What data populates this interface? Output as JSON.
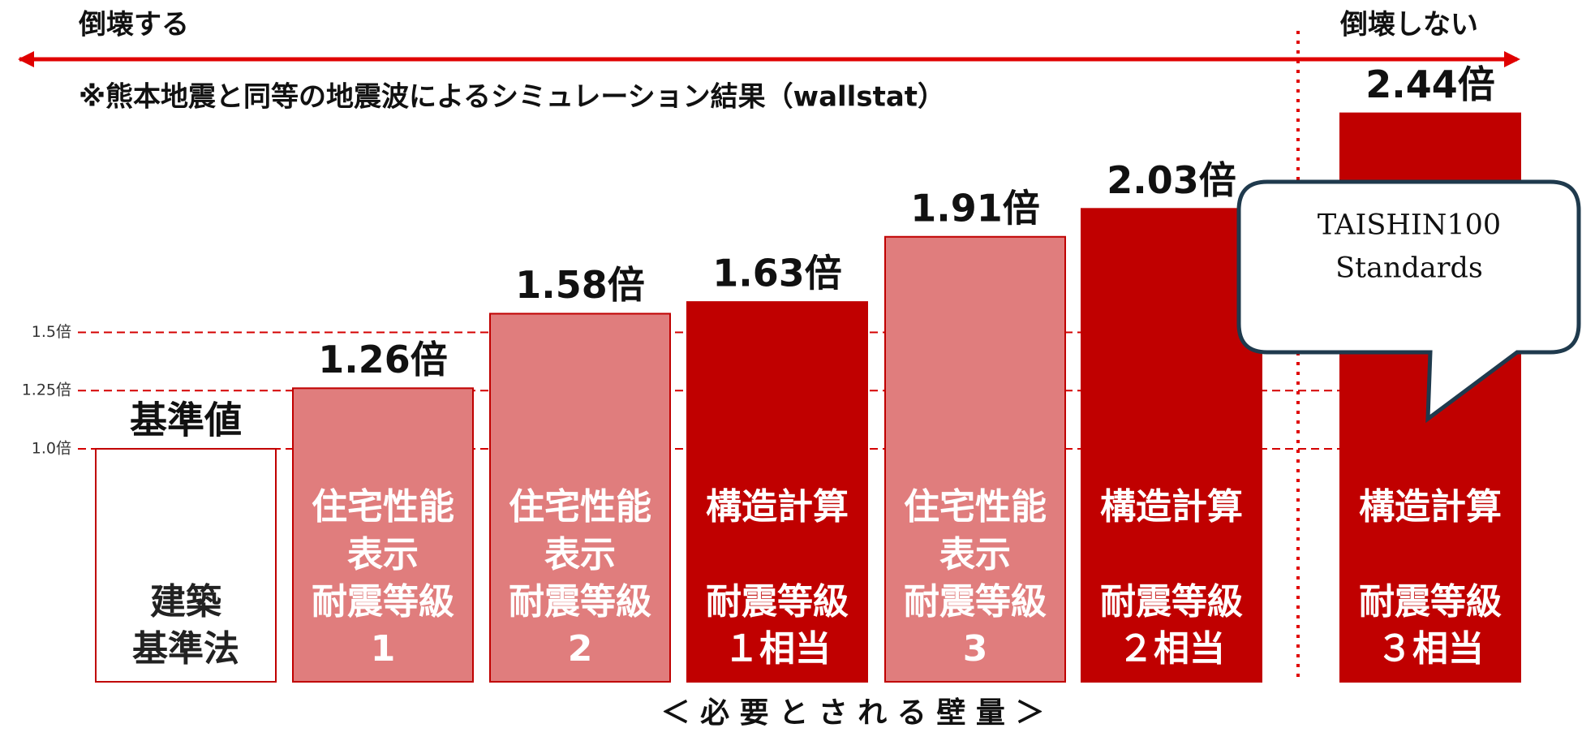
{
  "chart_data": {
    "type": "bar",
    "left_label": "倒壊する",
    "right_label": "倒壊しない",
    "note": "※熊本地震と同等の地震波によるシミュレーション結果（wallstat）",
    "x_label": "＜ 必 要 と さ れ る 壁 量 ＞",
    "callout": [
      "TAISHIN100",
      "Standards"
    ],
    "categories": [
      [
        "建築",
        "基準法"
      ],
      [
        "住宅性能",
        "表示",
        "耐震等級",
        "1"
      ],
      [
        "住宅性能",
        "表示",
        "耐震等級",
        "2"
      ],
      [
        "構造計算",
        "耐震等級",
        "１相当"
      ],
      [
        "住宅性能",
        "表示",
        "耐震等級",
        "3"
      ],
      [
        "構造計算",
        "耐震等級",
        "２相当"
      ],
      [
        "構造計算",
        "耐震等級",
        "３相当"
      ]
    ],
    "values": [
      1.0,
      1.26,
      1.58,
      1.63,
      1.91,
      2.03,
      2.44
    ],
    "value_labels": [
      "基準値",
      "1.26倍",
      "1.58倍",
      "1.63倍",
      "1.91倍",
      "2.03倍",
      "2.44倍"
    ],
    "colors": [
      "#ffffff",
      "#e07d7d",
      "#e07d7d",
      "#c00000",
      "#e07d7d",
      "#c00000",
      "#c00000"
    ],
    "ylim": [
      0,
      2.7
    ],
    "yticks": [
      {
        "value": 1.0,
        "label": "1.0倍"
      },
      {
        "value": 1.25,
        "label": "1.25倍"
      },
      {
        "value": 1.5,
        "label": "1.5倍"
      }
    ],
    "grid": true
  }
}
